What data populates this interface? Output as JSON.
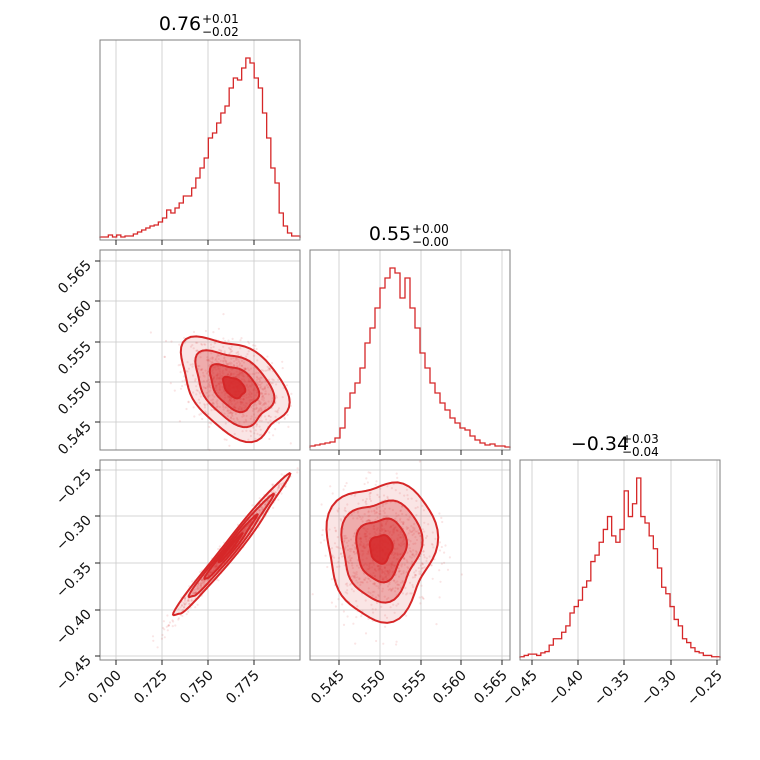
{
  "chart_data": {
    "type": "corner",
    "color": "#d62728",
    "parameters": [
      {
        "range": [
          0.689,
          0.798
        ],
        "ticks": [
          "0.700",
          "0.725",
          "0.750",
          "0.775"
        ],
        "summary": {
          "median": "0.76",
          "plus": "+0.01",
          "minus": "−0.02"
        },
        "histogram": {
          "edges": [
            0.689,
            0.798
          ],
          "counts": [
            1,
            1,
            3,
            1,
            3,
            1,
            2,
            2,
            4,
            6,
            8,
            10,
            12,
            13,
            16,
            20,
            28,
            25,
            30,
            35,
            42,
            42,
            50,
            60,
            70,
            80,
            100,
            105,
            115,
            125,
            132,
            150,
            160,
            158,
            170,
            180,
            175,
            160,
            150,
            125,
            100,
            70,
            55,
            25,
            12,
            5,
            2,
            2
          ]
        }
      },
      {
        "range": [
          0.5418,
          0.5663
        ],
        "ticks": [
          "0.545",
          "0.550",
          "0.555",
          "0.560",
          "0.565"
        ],
        "summary": {
          "median": "0.55",
          "plus": "+0.00",
          "minus": "−0.00"
        },
        "histogram": {
          "edges": [
            0.5418,
            0.5663
          ],
          "counts": [
            2,
            3,
            4,
            5,
            6,
            10,
            20,
            40,
            55,
            65,
            80,
            105,
            120,
            140,
            160,
            170,
            180,
            175,
            150,
            170,
            140,
            120,
            95,
            80,
            65,
            55,
            45,
            38,
            30,
            25,
            20,
            18,
            12,
            8,
            5,
            3,
            4,
            2,
            2,
            1
          ]
        }
      },
      {
        "range": [
          -0.462,
          -0.243
        ],
        "ticks": [
          "−0.45",
          "−0.40",
          "−0.35",
          "−0.30",
          "−0.25"
        ],
        "summary": {
          "median": "−0.34",
          "plus": "+0.03",
          "minus": "−0.04"
        },
        "histogram": {
          "edges": [
            -0.462,
            -0.243
          ],
          "counts": [
            1,
            2,
            3,
            3,
            2,
            4,
            5,
            10,
            15,
            15,
            20,
            25,
            35,
            40,
            45,
            55,
            60,
            75,
            80,
            90,
            100,
            110,
            95,
            90,
            100,
            130,
            110,
            120,
            140,
            110,
            105,
            95,
            85,
            70,
            55,
            50,
            40,
            30,
            25,
            15,
            12,
            8,
            5,
            4,
            2,
            2,
            1,
            1
          ]
        }
      }
    ],
    "pairs": [
      {
        "x": 0,
        "y": 1,
        "center": [
          0.762,
          0.5495
        ],
        "sx": 0.013,
        "sy": 0.0028,
        "rho": -0.38
      },
      {
        "x": 0,
        "y": 2,
        "center": [
          0.76,
          -0.34
        ],
        "sx": 0.014,
        "sy": 0.035,
        "rho": 0.985
      },
      {
        "x": 1,
        "y": 2,
        "center": [
          0.5505,
          -0.34
        ],
        "sx": 0.003,
        "sy": 0.034,
        "rho": 0.05
      }
    ]
  }
}
